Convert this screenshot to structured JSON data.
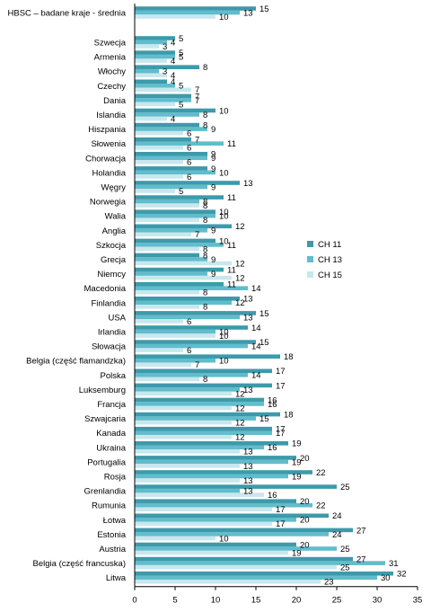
{
  "chart_data": {
    "type": "bar",
    "orientation": "horizontal",
    "categories": [
      "HBSC – badane kraje - średnia",
      "Szwecja",
      "Armenia",
      "Włochy",
      "Czechy",
      "Dania",
      "Islandia",
      "Hiszpania",
      "Słowenia",
      "Chorwacja",
      "Holandia",
      "Węgry",
      "Norwegia",
      "Walia",
      "Anglia",
      "Szkocja",
      "Grecja",
      "Niemcy",
      "Macedonia",
      "Finlandia",
      "USA",
      "Irlandia",
      "Słowacja",
      "Belgia (część flamandzka)",
      "Polska",
      "Luksemburg",
      "Francja",
      "Szwajcaria",
      "Kanada",
      "Ukraina",
      "Portugalia",
      "Rosja",
      "Grenlandia",
      "Rumunia",
      "Łotwa",
      "Estonia",
      "Austria",
      "Belgia (część francuska)",
      "Litwa"
    ],
    "series": [
      {
        "name": "CH 11",
        "color": "#3d9aab",
        "values": [
          15,
          5,
          5,
          8,
          4,
          7,
          10,
          8,
          7,
          9,
          9,
          13,
          11,
          10,
          12,
          10,
          8,
          11,
          11,
          13,
          15,
          14,
          15,
          18,
          17,
          17,
          16,
          18,
          17,
          19,
          20,
          22,
          25,
          20,
          24,
          27,
          20,
          27,
          32
        ]
      },
      {
        "name": "CH 13",
        "color": "#62bccb",
        "values": [
          13,
          4,
          5,
          3,
          5,
          7,
          8,
          9,
          11,
          9,
          10,
          9,
          8,
          10,
          9,
          11,
          9,
          9,
          14,
          12,
          13,
          10,
          14,
          10,
          14,
          13,
          16,
          15,
          17,
          16,
          19,
          19,
          13,
          22,
          20,
          24,
          25,
          31,
          30
        ]
      },
      {
        "name": "CH 15",
        "color": "#c8e7ee",
        "values": [
          10,
          3,
          4,
          4,
          7,
          5,
          4,
          6,
          6,
          6,
          6,
          5,
          8,
          8,
          7,
          8,
          12,
          12,
          8,
          8,
          6,
          10,
          6,
          7,
          8,
          12,
          12,
          12,
          12,
          13,
          13,
          13,
          16,
          17,
          17,
          10,
          19,
          25,
          23
        ]
      }
    ],
    "xlim": [
      0,
      35
    ],
    "xticks": [
      "0",
      "5",
      "10",
      "15",
      "20",
      "25",
      "30",
      "35"
    ],
    "grid": false,
    "legend_position": "right"
  }
}
